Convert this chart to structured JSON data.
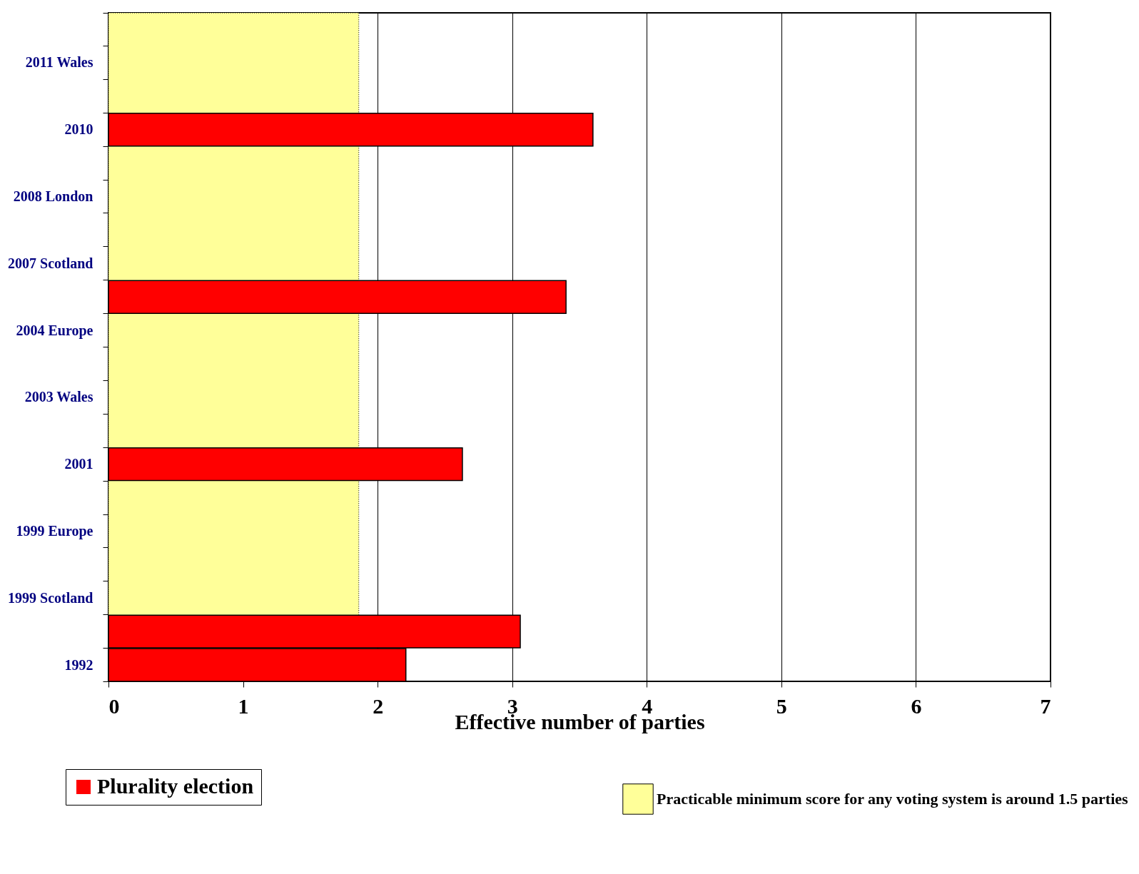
{
  "chart_data": {
    "type": "bar",
    "orientation": "horizontal",
    "categories": [
      null,
      "2011 Wales",
      null,
      "2010",
      null,
      "2008 London",
      null,
      "2007 Scotland",
      null,
      "2004 Europe",
      null,
      "2003 Wales",
      null,
      "2001",
      null,
      "1999 Europe",
      null,
      "1999 Scotland",
      null,
      "1992"
    ],
    "series": [
      {
        "name": "Plurality election",
        "color": "#ff0000",
        "values": [
          null,
          null,
          null,
          3.6,
          null,
          null,
          null,
          null,
          3.4,
          null,
          null,
          null,
          null,
          2.63,
          null,
          null,
          null,
          null,
          3.06,
          2.21
        ]
      }
    ],
    "xlabel": "Effective number of parties",
    "xlim": [
      0,
      7
    ],
    "xticks": [
      0,
      1,
      2,
      3,
      4,
      5,
      6,
      7
    ],
    "bands": [
      {
        "axis": "x",
        "from": 0,
        "to": 1.86,
        "label": "Practicable minimum score for any voting system is around 1.5 parties",
        "color": "#ffff99"
      }
    ],
    "grid": "x",
    "legend": "bottom"
  }
}
